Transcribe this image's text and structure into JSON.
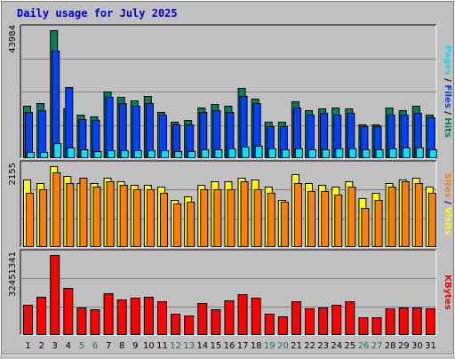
{
  "title": "Daily usage for July 2025",
  "colors": {
    "background": "#c0c0c0",
    "plot_background": "#c0c0c0",
    "hits": "#00805c",
    "files": "#0040ff",
    "pages": "#00e0ff",
    "visits": "#ffff00",
    "sites": "#ff8000",
    "kbytes": "#ff0000",
    "weekend_day": "#00805c",
    "weekday": "#000000",
    "title": "#0000cc"
  },
  "chart_data": [
    {
      "type": "bar",
      "name": "hits-files-pages",
      "categories": [
        "1",
        "2",
        "3",
        "4",
        "5",
        "6",
        "7",
        "8",
        "9",
        "10",
        "11",
        "12",
        "13",
        "14",
        "15",
        "16",
        "17",
        "18",
        "19",
        "20",
        "21",
        "22",
        "23",
        "24",
        "25",
        "26",
        "27",
        "28",
        "29",
        "30",
        "31"
      ],
      "weekend_days": [
        "5",
        "6",
        "12",
        "13",
        "19",
        "20",
        "26",
        "27"
      ],
      "y_max_label": "43984",
      "ylim": [
        0,
        43984
      ],
      "axis_label_parts": [
        "Pages",
        "Files",
        "Hits"
      ],
      "series": [
        {
          "name": "Hits",
          "color": "#00805c",
          "values": [
            18000,
            19000,
            44000,
            17000,
            15000,
            14500,
            23000,
            21000,
            20000,
            21500,
            16000,
            12500,
            13000,
            17500,
            18500,
            18000,
            24000,
            20500,
            12500,
            12500,
            19500,
            16500,
            17000,
            17500,
            17000,
            11500,
            11500,
            17500,
            16500,
            18000,
            15000
          ]
        },
        {
          "name": "Files",
          "color": "#0040ff",
          "values": [
            16000,
            16500,
            37000,
            24500,
            13500,
            13000,
            21000,
            19000,
            18000,
            19000,
            15000,
            11500,
            11500,
            16000,
            16500,
            16000,
            21500,
            19000,
            11000,
            11000,
            17500,
            15000,
            15500,
            15000,
            15500,
            11000,
            11000,
            15000,
            15000,
            15500,
            14000
          ]
        },
        {
          "name": "Pages",
          "color": "#00e0ff",
          "values": [
            2200,
            2200,
            5200,
            3700,
            3000,
            2400,
            2900,
            2800,
            2700,
            2900,
            2900,
            2300,
            2500,
            3100,
            3200,
            3400,
            4100,
            4200,
            3300,
            3200,
            3500,
            3100,
            3200,
            3300,
            3300,
            3100,
            3100,
            3500,
            3600,
            3600,
            3200
          ]
        }
      ]
    },
    {
      "type": "bar",
      "name": "visits-sites",
      "categories": [
        "1",
        "2",
        "3",
        "4",
        "5",
        "6",
        "7",
        "8",
        "9",
        "10",
        "11",
        "12",
        "13",
        "14",
        "15",
        "16",
        "17",
        "18",
        "19",
        "20",
        "21",
        "22",
        "23",
        "24",
        "25",
        "26",
        "27",
        "28",
        "29",
        "30",
        "31"
      ],
      "y_max_label": "2155",
      "ylim": [
        0,
        2155
      ],
      "axis_label_parts": [
        "Sites",
        "Visits"
      ],
      "series": [
        {
          "name": "Visits",
          "color": "#ffff00",
          "values": [
            1800,
            1700,
            2155,
            1900,
            1700,
            1700,
            1850,
            1750,
            1650,
            1650,
            1600,
            1250,
            1350,
            1650,
            1750,
            1750,
            1850,
            1800,
            1600,
            1250,
            1950,
            1700,
            1650,
            1600,
            1750,
            1300,
            1450,
            1700,
            1800,
            1850,
            1600
          ]
        },
        {
          "name": "Sites",
          "color": "#ff8000",
          "values": [
            1450,
            1550,
            2000,
            1700,
            1850,
            1600,
            1750,
            1650,
            1550,
            1550,
            1450,
            1150,
            1200,
            1550,
            1550,
            1550,
            1750,
            1550,
            1450,
            1200,
            1700,
            1500,
            1500,
            1400,
            1600,
            1050,
            1250,
            1600,
            1750,
            1700,
            1450
          ]
        }
      ]
    },
    {
      "type": "bar",
      "name": "kbytes",
      "categories": [
        "1",
        "2",
        "3",
        "4",
        "5",
        "6",
        "7",
        "8",
        "9",
        "10",
        "11",
        "12",
        "13",
        "14",
        "15",
        "16",
        "17",
        "18",
        "19",
        "20",
        "21",
        "22",
        "23",
        "24",
        "25",
        "26",
        "27",
        "28",
        "29",
        "30",
        "31"
      ],
      "y_max_label": "32451341",
      "ylim": [
        0,
        32451341
      ],
      "axis_label_parts": [
        "KBytes"
      ],
      "series": [
        {
          "name": "KBytes",
          "color": "#ff0000",
          "values": [
            12200,
            15500,
            32451,
            19100,
            11100,
            10600,
            17100,
            14300,
            15200,
            15600,
            13600,
            8500,
            8100,
            13100,
            10600,
            14200,
            16500,
            15000,
            8800,
            7600,
            13700,
            10700,
            11000,
            12300,
            13700,
            7300,
            7100,
            10900,
            11000,
            11000,
            10900
          ]
        }
      ]
    }
  ]
}
